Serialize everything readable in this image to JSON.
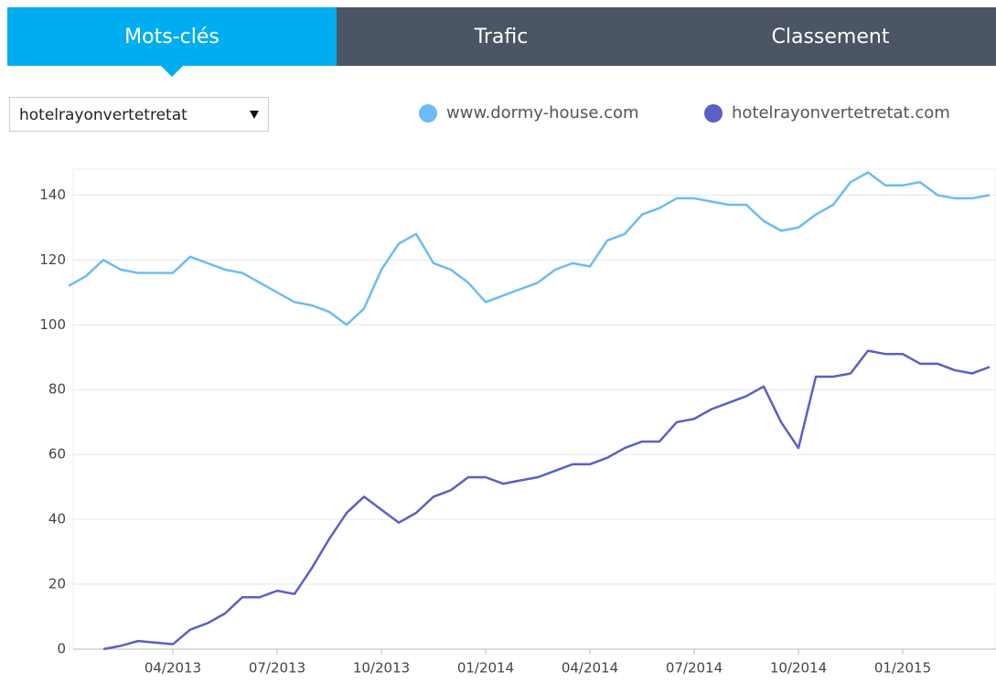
{
  "tabs": [
    "Mots-clés",
    "Trafic",
    "Classement"
  ],
  "dropdown": {
    "selected": "hotelrayonvertetretat"
  },
  "chart_data": {
    "type": "line",
    "categories": [
      null,
      null,
      null,
      null,
      null,
      null,
      "04/2013",
      null,
      null,
      null,
      null,
      null,
      "07/2013",
      null,
      null,
      null,
      null,
      null,
      "10/2013",
      null,
      null,
      null,
      null,
      null,
      "01/2014",
      null,
      null,
      null,
      null,
      null,
      "04/2014",
      null,
      null,
      null,
      null,
      null,
      "07/2014",
      null,
      null,
      null,
      null,
      null,
      "10/2014",
      null,
      null,
      null,
      null,
      null,
      "01/2015",
      null,
      null,
      null,
      null,
      null
    ],
    "series": [
      {
        "name": "www.dormy-house.com",
        "color": "#6bbcf5",
        "values": [
          112,
          115,
          120,
          117,
          116,
          116,
          116,
          121,
          119,
          117,
          116,
          113,
          110,
          107,
          106,
          104,
          100,
          105,
          117,
          125,
          128,
          119,
          117,
          113,
          107,
          109,
          111,
          113,
          117,
          119,
          118,
          126,
          128,
          134,
          136,
          139,
          139,
          138,
          137,
          137,
          132,
          129,
          130,
          134,
          137,
          144,
          147,
          143,
          143,
          144,
          140,
          139,
          139,
          140
        ]
      },
      {
        "name": "hotelrayonvertetretat.com",
        "color": "#5b5fc7",
        "values": [
          null,
          null,
          0,
          1,
          2.5,
          2,
          1.5,
          6,
          8,
          11,
          16,
          16,
          18,
          17,
          25,
          34,
          42,
          47,
          43,
          39,
          42,
          47,
          49,
          53,
          53,
          51,
          52,
          53,
          55,
          57,
          57,
          59,
          62,
          64,
          64,
          70,
          71,
          74,
          76,
          78,
          81,
          70,
          62,
          84,
          84,
          85,
          92,
          91,
          91,
          88,
          88,
          86,
          85,
          87
        ]
      }
    ],
    "ylim": [
      0,
      148
    ],
    "yticks": [
      0,
      20,
      40,
      60,
      80,
      100,
      120,
      140
    ],
    "grid": true
  }
}
